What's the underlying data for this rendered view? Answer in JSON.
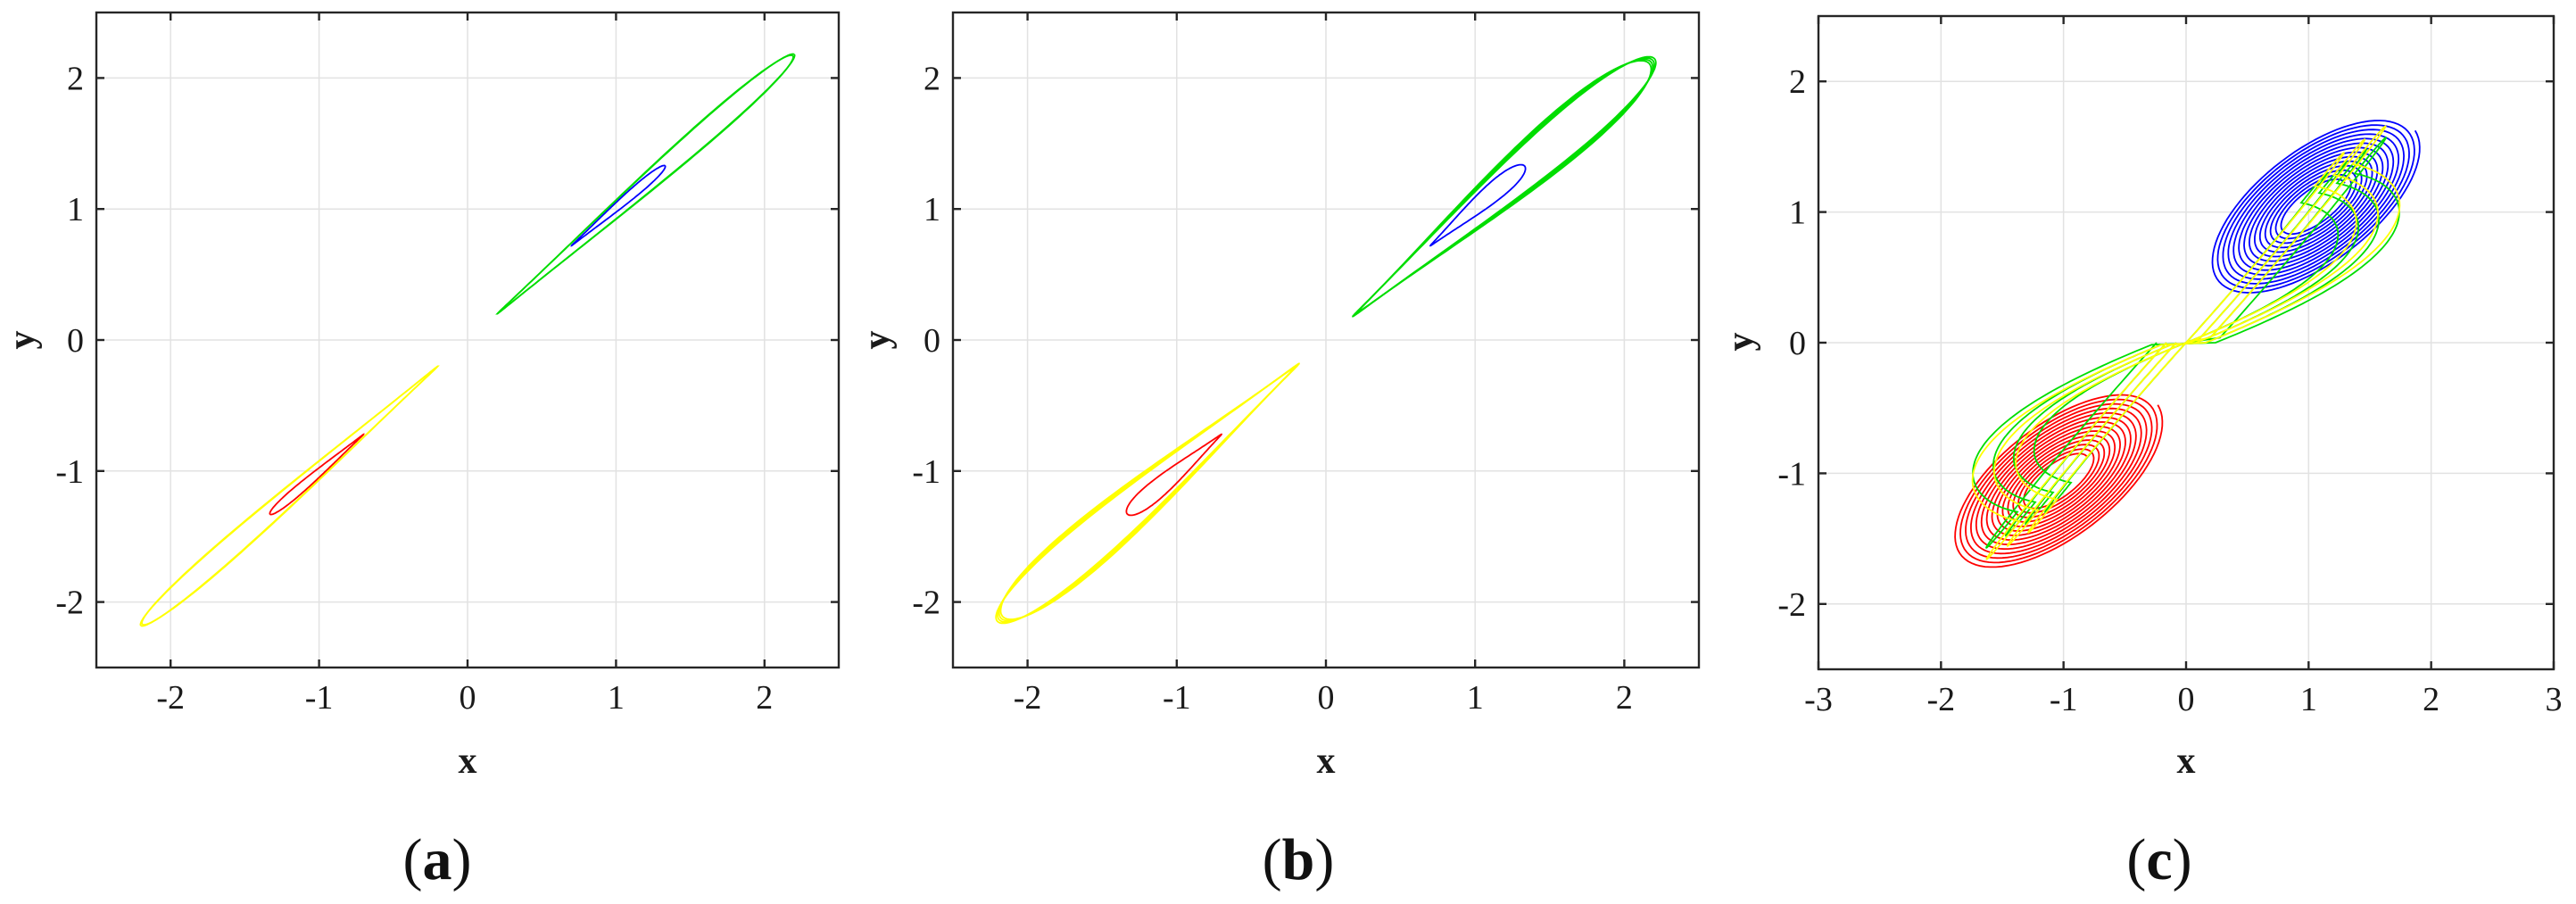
{
  "colors": {
    "blue": "#0000ff",
    "red": "#ff0000",
    "green": "#00dd00",
    "yellow": "#ffff00",
    "grid": "#e2e2e2",
    "axis": "#262626"
  },
  "chart_data": [
    {
      "type": "line",
      "panel": "a",
      "caption": "(a)",
      "xlabel": "x",
      "ylabel": "y",
      "xlim": [
        -2.5,
        2.5
      ],
      "ylim": [
        -2.5,
        2.5
      ],
      "xticks": [
        -2,
        -1,
        0,
        1,
        2
      ],
      "yticks": [
        -2,
        -1,
        0,
        1,
        2
      ],
      "xtick_labels": [
        "-2",
        "-1",
        "0",
        "1",
        "2"
      ],
      "ytick_labels": [
        "-2",
        "-1",
        "0",
        "1",
        "2"
      ],
      "grid": true,
      "series": [
        {
          "color": "green",
          "shape": "loop",
          "points": [
            [
              0.2,
              0.2
            ],
            [
              2.2,
              2.18
            ]
          ],
          "width": 0.11,
          "turns": 2,
          "spread": 0.01
        },
        {
          "color": "blue",
          "shape": "loop",
          "points": [
            [
              0.7,
              0.72
            ],
            [
              1.33,
              1.33
            ]
          ],
          "width": 0.05,
          "turns": 1,
          "spread": 0
        },
        {
          "color": "yellow",
          "shape": "loop",
          "points": [
            [
              -0.2,
              -0.2
            ],
            [
              -2.2,
              -2.18
            ]
          ],
          "width": 0.11,
          "turns": 2,
          "spread": 0.01
        },
        {
          "color": "red",
          "shape": "loop",
          "points": [
            [
              -0.7,
              -0.72
            ],
            [
              -1.33,
              -1.33
            ]
          ],
          "width": 0.05,
          "turns": 1,
          "spread": 0
        }
      ]
    },
    {
      "type": "line",
      "panel": "b",
      "caption": "(b)",
      "xlabel": "x",
      "ylabel": "y",
      "xlim": [
        -2.5,
        2.5
      ],
      "ylim": [
        -2.5,
        2.5
      ],
      "xticks": [
        -2,
        -1,
        0,
        1,
        2
      ],
      "yticks": [
        -2,
        -1,
        0,
        1,
        2
      ],
      "xtick_labels": [
        "-2",
        "-1",
        "0",
        "1",
        "2"
      ],
      "ytick_labels": [
        "-2",
        "-1",
        "0",
        "1",
        "2"
      ],
      "grid": true,
      "series": [
        {
          "color": "green",
          "shape": "loop",
          "points": [
            [
              0.18,
              0.18
            ],
            [
              2.2,
              2.15
            ]
          ],
          "width": 0.22,
          "turns": 4,
          "spread": 0.012
        },
        {
          "color": "blue",
          "shape": "loop",
          "points": [
            [
              0.7,
              0.72
            ],
            [
              1.33,
              1.33
            ]
          ],
          "width": 0.1,
          "turns": 1,
          "spread": 0
        },
        {
          "color": "yellow",
          "shape": "loop",
          "points": [
            [
              -0.18,
              -0.18
            ],
            [
              -2.2,
              -2.15
            ]
          ],
          "width": 0.22,
          "turns": 4,
          "spread": 0.012
        },
        {
          "color": "red",
          "shape": "loop",
          "points": [
            [
              -0.7,
              -0.72
            ],
            [
              -1.33,
              -1.33
            ]
          ],
          "width": 0.1,
          "turns": 1,
          "spread": 0
        }
      ]
    },
    {
      "type": "line",
      "panel": "c",
      "caption": "(c)",
      "xlabel": "x",
      "ylabel": "y",
      "xlim": [
        -3,
        3
      ],
      "ylim": [
        -2.5,
        2.5
      ],
      "xticks": [
        -3,
        -2,
        -1,
        0,
        1,
        2,
        3
      ],
      "yticks": [
        -2,
        -1,
        0,
        1,
        2
      ],
      "xtick_labels": [
        "-3",
        "-2",
        "-1",
        "0",
        "1",
        "2",
        "3"
      ],
      "ytick_labels": [
        "-2",
        "-1",
        "0",
        "1",
        "2"
      ],
      "grid": true,
      "series": [
        {
          "color": "blue",
          "shape": "spiral",
          "center": [
            1.05,
            1.05
          ],
          "rx_range": [
            0.3,
            1.0
          ],
          "ry_range": [
            0.12,
            0.45
          ],
          "angle_deg": 35,
          "turns": 14
        },
        {
          "color": "red",
          "shape": "spiral",
          "center": [
            -1.05,
            -1.05
          ],
          "rx_range": [
            0.3,
            1.0
          ],
          "ry_range": [
            0.12,
            0.45
          ],
          "angle_deg": 35,
          "turns": 14
        },
        {
          "color": "green",
          "shape": "butterfly",
          "scale": 1.0,
          "turns": 4
        },
        {
          "color": "yellow",
          "shape": "butterfly",
          "scale": 1.12,
          "turns": 3
        }
      ]
    }
  ]
}
